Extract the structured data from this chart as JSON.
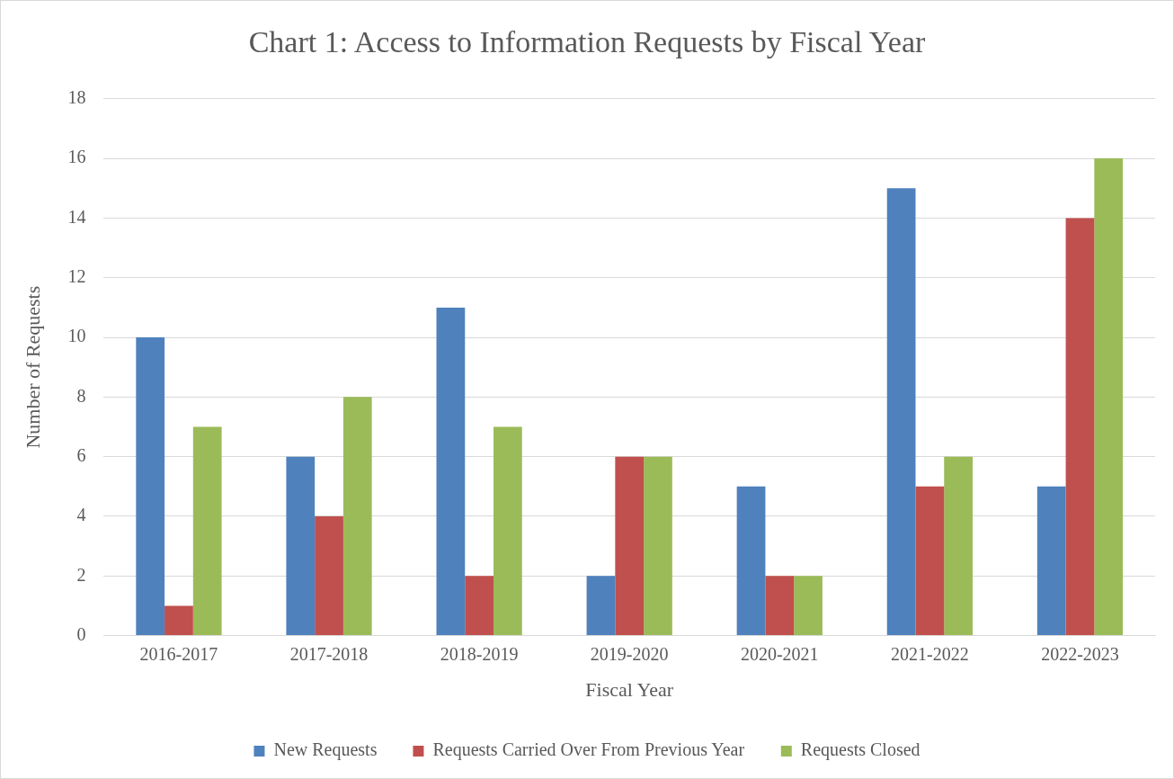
{
  "chart_data": {
    "type": "bar",
    "title": "Chart 1: Access to Information Requests by Fiscal Year",
    "xlabel": "Fiscal Year",
    "ylabel": "Number of Requests",
    "categories": [
      "2016-2017",
      "2017-2018",
      "2018-2019",
      "2019-2020",
      "2020-2021",
      "2021-2022",
      "2022-2023"
    ],
    "series": [
      {
        "name": "New Requests",
        "color": "#4f81bd",
        "values": [
          10,
          6,
          11,
          2,
          5,
          15,
          5
        ]
      },
      {
        "name": "Requests Carried Over From Previous Year",
        "color": "#c0504d",
        "values": [
          1,
          4,
          2,
          6,
          2,
          5,
          14
        ]
      },
      {
        "name": "Requests Closed",
        "color": "#9bbb59",
        "values": [
          7,
          8,
          7,
          6,
          2,
          6,
          16
        ]
      }
    ],
    "ylim": [
      0,
      18
    ],
    "yticks": [
      0,
      2,
      4,
      6,
      8,
      10,
      12,
      14,
      16,
      18
    ],
    "grid": "y",
    "legend": "bottom"
  }
}
